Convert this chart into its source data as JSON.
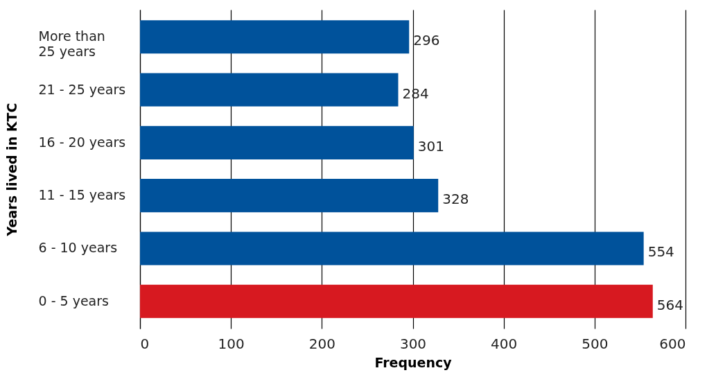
{
  "chart_data": {
    "type": "bar",
    "orientation": "horizontal",
    "xlabel": "Frequency",
    "ylabel": "Years lived in KTC",
    "categories": [
      "More than 25 years",
      "21 - 25 years",
      "16 - 20 years",
      "11 - 15 years",
      "6 - 10 years",
      "0 - 5 years"
    ],
    "values": [
      296,
      284,
      301,
      328,
      554,
      564
    ],
    "colors": [
      "#00529b",
      "#00529b",
      "#00529b",
      "#00529b",
      "#00529b",
      "#d71920"
    ],
    "xlim": [
      0,
      600
    ],
    "xticks": [
      0,
      100,
      200,
      300,
      400,
      500,
      600
    ],
    "grid": "x",
    "data_labels": true
  }
}
